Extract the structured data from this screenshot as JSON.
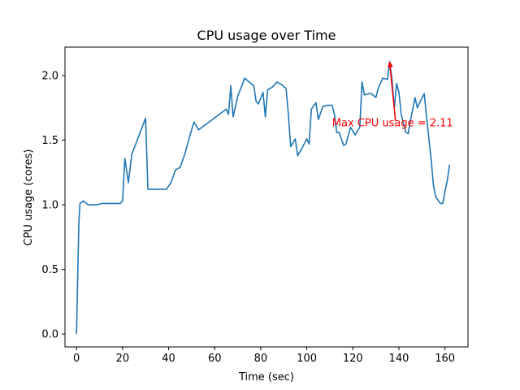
{
  "chart_data": {
    "type": "line",
    "title": "CPU usage over Time",
    "xlabel": "Time (sec)",
    "ylabel": "CPU usage (cores)",
    "xlim": [
      -5,
      170
    ],
    "ylim": [
      -0.1,
      2.22
    ],
    "xticks": [
      0,
      20,
      40,
      60,
      80,
      100,
      120,
      140,
      160
    ],
    "yticks": [
      0.0,
      0.5,
      1.0,
      1.5,
      2.0
    ],
    "xtick_labels": [
      "0",
      "20",
      "40",
      "60",
      "80",
      "100",
      "120",
      "140",
      "160"
    ],
    "ytick_labels": [
      "0.0",
      "0.5",
      "1.0",
      "1.5",
      "2.0"
    ],
    "grid": false,
    "series": [
      {
        "color": "#1f77b4",
        "x": [
          0,
          1,
          1.5,
          3,
          5,
          7,
          9,
          11,
          13,
          15,
          17,
          19,
          20,
          21,
          22.5,
          24,
          30,
          31,
          33,
          35,
          37,
          39,
          41,
          43,
          45,
          47,
          49,
          51,
          53,
          65,
          66,
          67,
          68,
          70,
          72,
          73,
          75,
          77,
          78,
          79,
          81,
          82,
          83,
          85,
          87,
          89,
          91,
          92,
          93,
          95,
          96,
          98,
          100,
          101,
          102,
          104,
          105,
          107,
          109,
          111,
          112,
          113,
          114,
          116,
          117,
          119,
          121,
          123,
          124,
          125,
          127,
          128,
          130,
          131,
          133,
          135,
          136,
          137,
          138,
          139,
          140,
          141,
          143,
          144,
          145,
          147,
          148,
          149,
          151,
          152,
          154,
          155,
          156,
          158,
          159,
          161,
          162
        ],
        "y": [
          0.0,
          0.85,
          1.01,
          1.03,
          1.0,
          1.0,
          1.0,
          1.01,
          1.01,
          1.01,
          1.01,
          1.01,
          1.03,
          1.36,
          1.17,
          1.39,
          1.67,
          1.12,
          1.12,
          1.12,
          1.12,
          1.12,
          1.17,
          1.27,
          1.29,
          1.39,
          1.52,
          1.64,
          1.58,
          1.74,
          1.7,
          1.92,
          1.68,
          1.84,
          1.93,
          1.98,
          1.95,
          1.92,
          1.8,
          1.78,
          1.87,
          1.68,
          1.89,
          1.91,
          1.95,
          1.93,
          1.9,
          1.7,
          1.45,
          1.51,
          1.38,
          1.44,
          1.51,
          1.47,
          1.74,
          1.79,
          1.66,
          1.76,
          1.77,
          1.77,
          1.7,
          1.56,
          1.56,
          1.46,
          1.47,
          1.6,
          1.54,
          1.6,
          1.95,
          1.85,
          1.86,
          1.86,
          1.83,
          1.9,
          1.98,
          1.97,
          2.11,
          1.97,
          1.75,
          1.94,
          1.87,
          1.7,
          1.56,
          1.55,
          1.65,
          1.83,
          1.75,
          1.79,
          1.86,
          1.68,
          1.35,
          1.15,
          1.06,
          1.01,
          1.01,
          1.19,
          1.31
        ]
      }
    ],
    "annotations": [
      {
        "text": "Max CPU usage = 2.11",
        "color": "#ff0000",
        "point": [
          136,
          2.11
        ],
        "text_pos": [
          111,
          1.6
        ]
      }
    ]
  }
}
